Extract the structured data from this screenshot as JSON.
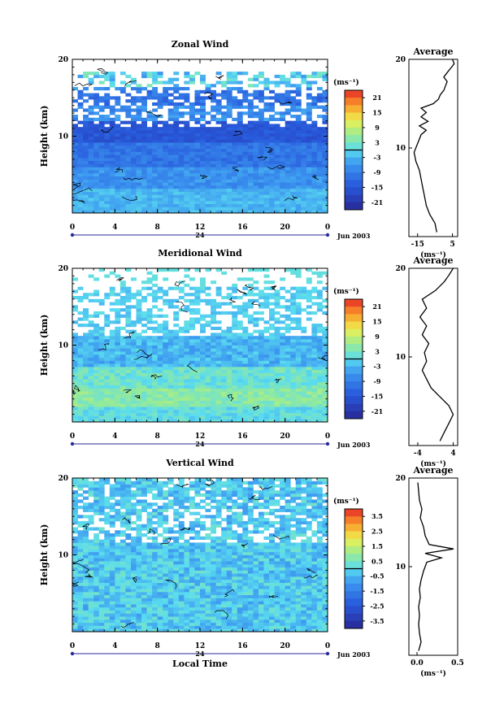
{
  "chart_data": [
    {
      "type": "heatmap",
      "title": "Zonal Wind",
      "ylabel": "Height (km)",
      "ylim": [
        0,
        20
      ],
      "xlim": [
        0,
        24
      ],
      "xticks": [
        "0",
        "4",
        "8",
        "12",
        "16",
        "20",
        "0"
      ],
      "day_label": "24",
      "date_label": "Jun 2003",
      "xlabel": "",
      "unit_label": "(ms⁻¹)",
      "colorbar": {
        "min": -24,
        "max": 24,
        "ticks": [
          "21",
          "15",
          "9",
          "3",
          "-3",
          "-9",
          "-15",
          "-21"
        ],
        "tick_values": [
          21,
          15,
          9,
          3,
          -3,
          -9,
          -15,
          -21
        ]
      },
      "profile": {
        "title": "Average",
        "xlim": [
          -20,
          8
        ],
        "xticks": [
          "-15",
          "5"
        ],
        "xtick_values": [
          -15,
          5
        ],
        "xlabel": "(ms⁻¹)",
        "points": [
          [
            -4,
            0.5
          ],
          [
            -5,
            1.5
          ],
          [
            -8,
            2.5
          ],
          [
            -10,
            3.5
          ],
          [
            -11,
            4.5
          ],
          [
            -12,
            5.5
          ],
          [
            -13,
            6.5
          ],
          [
            -14,
            7.5
          ],
          [
            -16,
            8.5
          ],
          [
            -17,
            9.5
          ],
          [
            -15,
            10.5
          ],
          [
            -13,
            11.5
          ],
          [
            -10,
            12
          ],
          [
            -14,
            12.5
          ],
          [
            -9,
            13
          ],
          [
            -13,
            13.5
          ],
          [
            -10,
            14
          ],
          [
            -13,
            14.5
          ],
          [
            -6,
            15
          ],
          [
            -3,
            15.5
          ],
          [
            -2,
            16
          ],
          [
            0,
            16.5
          ],
          [
            1,
            17
          ],
          [
            2,
            17.5
          ],
          [
            0,
            18
          ],
          [
            2,
            18.5
          ],
          [
            4,
            19
          ],
          [
            6,
            19.5
          ],
          [
            5,
            20
          ]
        ]
      }
    },
    {
      "type": "heatmap",
      "title": "Meridional Wind",
      "ylabel": "Height (km)",
      "ylim": [
        0,
        20
      ],
      "xlim": [
        0,
        24
      ],
      "xticks": [
        "0",
        "4",
        "8",
        "12",
        "16",
        "20",
        "0"
      ],
      "day_label": "24",
      "date_label": "Jun 2003",
      "xlabel": "",
      "unit_label": "(ms⁻¹)",
      "colorbar": {
        "min": -24,
        "max": 24,
        "ticks": [
          "21",
          "15",
          "9",
          "3",
          "-3",
          "-9",
          "-15",
          "-21"
        ],
        "tick_values": [
          21,
          15,
          9,
          3,
          -3,
          -9,
          -15,
          -21
        ]
      },
      "profile": {
        "title": "Average",
        "xlim": [
          -6,
          5
        ],
        "xticks": [
          "-4",
          "4"
        ],
        "xtick_values": [
          -4,
          4
        ],
        "xlabel": "(ms⁻¹)",
        "points": [
          [
            1,
            0.5
          ],
          [
            2,
            1.5
          ],
          [
            3,
            2.5
          ],
          [
            4,
            3.5
          ],
          [
            3,
            4.5
          ],
          [
            1,
            5.5
          ],
          [
            -1,
            6.5
          ],
          [
            -2,
            7.5
          ],
          [
            -3,
            8.5
          ],
          [
            -2,
            9.5
          ],
          [
            -2.5,
            10.5
          ],
          [
            -1.5,
            11.5
          ],
          [
            -3,
            12.5
          ],
          [
            -2,
            13.5
          ],
          [
            -3.5,
            14.5
          ],
          [
            -2,
            15.5
          ],
          [
            -3,
            16.5
          ],
          [
            0,
            17.5
          ],
          [
            2,
            18.5
          ],
          [
            3,
            19.2
          ],
          [
            4,
            20
          ]
        ]
      }
    },
    {
      "type": "heatmap",
      "title": "Vertical Wind",
      "ylabel": "Height (km)",
      "ylim": [
        0,
        20
      ],
      "xlim": [
        0,
        24
      ],
      "xticks": [
        "0",
        "4",
        "8",
        "12",
        "16",
        "20",
        "0"
      ],
      "day_label": "24",
      "date_label": "Jun 2003",
      "xlabel": "Local Time",
      "unit_label": "(ms⁻¹)",
      "colorbar": {
        "min": -4,
        "max": 4,
        "ticks": [
          "3.5",
          "2.5",
          "1.5",
          "0.5",
          "-0.5",
          "-1.5",
          "-2.5",
          "-3.5"
        ],
        "tick_values": [
          3.5,
          2.5,
          1.5,
          0.5,
          -0.5,
          -1.5,
          -2.5,
          -3.5
        ]
      },
      "profile": {
        "title": "Average",
        "xlim": [
          -0.1,
          0.5
        ],
        "xticks": [
          "0.0",
          "0.5"
        ],
        "xtick_values": [
          0.0,
          0.5
        ],
        "xlabel": "(ms⁻¹)",
        "points": [
          [
            0.02,
            0.5
          ],
          [
            0.05,
            1.5
          ],
          [
            0.03,
            2.5
          ],
          [
            0.02,
            3.5
          ],
          [
            0.03,
            4.5
          ],
          [
            0.02,
            5.5
          ],
          [
            0.04,
            6.5
          ],
          [
            0.03,
            7.5
          ],
          [
            0.05,
            8.5
          ],
          [
            0.08,
            9.5
          ],
          [
            0.12,
            10.5
          ],
          [
            0.3,
            11
          ],
          [
            0.1,
            11.5
          ],
          [
            0.45,
            12
          ],
          [
            0.15,
            12.5
          ],
          [
            0.1,
            13.5
          ],
          [
            0.08,
            14.5
          ],
          [
            0.04,
            15.5
          ],
          [
            0.06,
            16.5
          ],
          [
            0.03,
            17.5
          ],
          [
            0.02,
            18.5
          ],
          [
            0.01,
            19.5
          ]
        ]
      }
    }
  ]
}
